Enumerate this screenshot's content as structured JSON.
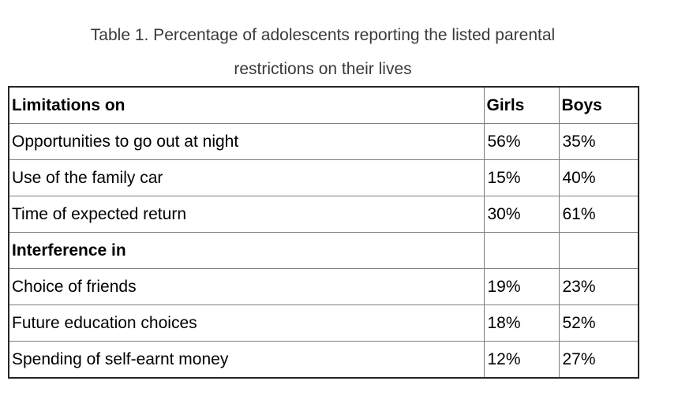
{
  "caption_line1": "Table 1. Percentage of adolescents reporting the listed parental",
  "caption_line2": "restrictions on their lives",
  "table": {
    "columns": [
      "Limitations on",
      "Girls",
      "Boys"
    ],
    "rows": [
      {
        "label": "Opportunities to go out at night",
        "girls": "56%",
        "boys": "35%"
      },
      {
        "label": "Use of the family car",
        "girls": "15%",
        "boys": "40%"
      },
      {
        "label": "Time of expected return",
        "girls": "30%",
        "boys": "61%"
      },
      {
        "label": "Interference in",
        "girls": "",
        "boys": ""
      },
      {
        "label": "Choice of friends",
        "girls": "19%",
        "boys": "23%"
      },
      {
        "label": "Future education choices",
        "girls": "18%",
        "boys": "52%"
      },
      {
        "label": "Spending of self-earnt money",
        "girls": "12%",
        "boys": "27%"
      }
    ]
  },
  "chart_data": {
    "type": "table",
    "title": "Table 1. Percentage of adolescents reporting the listed parental restrictions on their lives",
    "columns": [
      "Limitations on",
      "Girls",
      "Boys"
    ],
    "groups": [
      {
        "group": "Limitations on",
        "rows": [
          {
            "label": "Opportunities to go out at night",
            "girls_pct": 56,
            "boys_pct": 35
          },
          {
            "label": "Use of the family car",
            "girls_pct": 15,
            "boys_pct": 40
          },
          {
            "label": "Time of expected return",
            "girls_pct": 30,
            "boys_pct": 61
          }
        ]
      },
      {
        "group": "Interference in",
        "rows": [
          {
            "label": "Choice of friends",
            "girls_pct": 19,
            "boys_pct": 23
          },
          {
            "label": "Future education choices",
            "girls_pct": 18,
            "boys_pct": 52
          },
          {
            "label": "Spending of self-earnt money",
            "girls_pct": 12,
            "boys_pct": 27
          }
        ]
      }
    ]
  },
  "colors": {
    "outer_border": "#262626",
    "inner_border": "#7f7f7f",
    "caption_text": "#3a3a3a",
    "body_text": "#000000",
    "background": "#ffffff"
  }
}
